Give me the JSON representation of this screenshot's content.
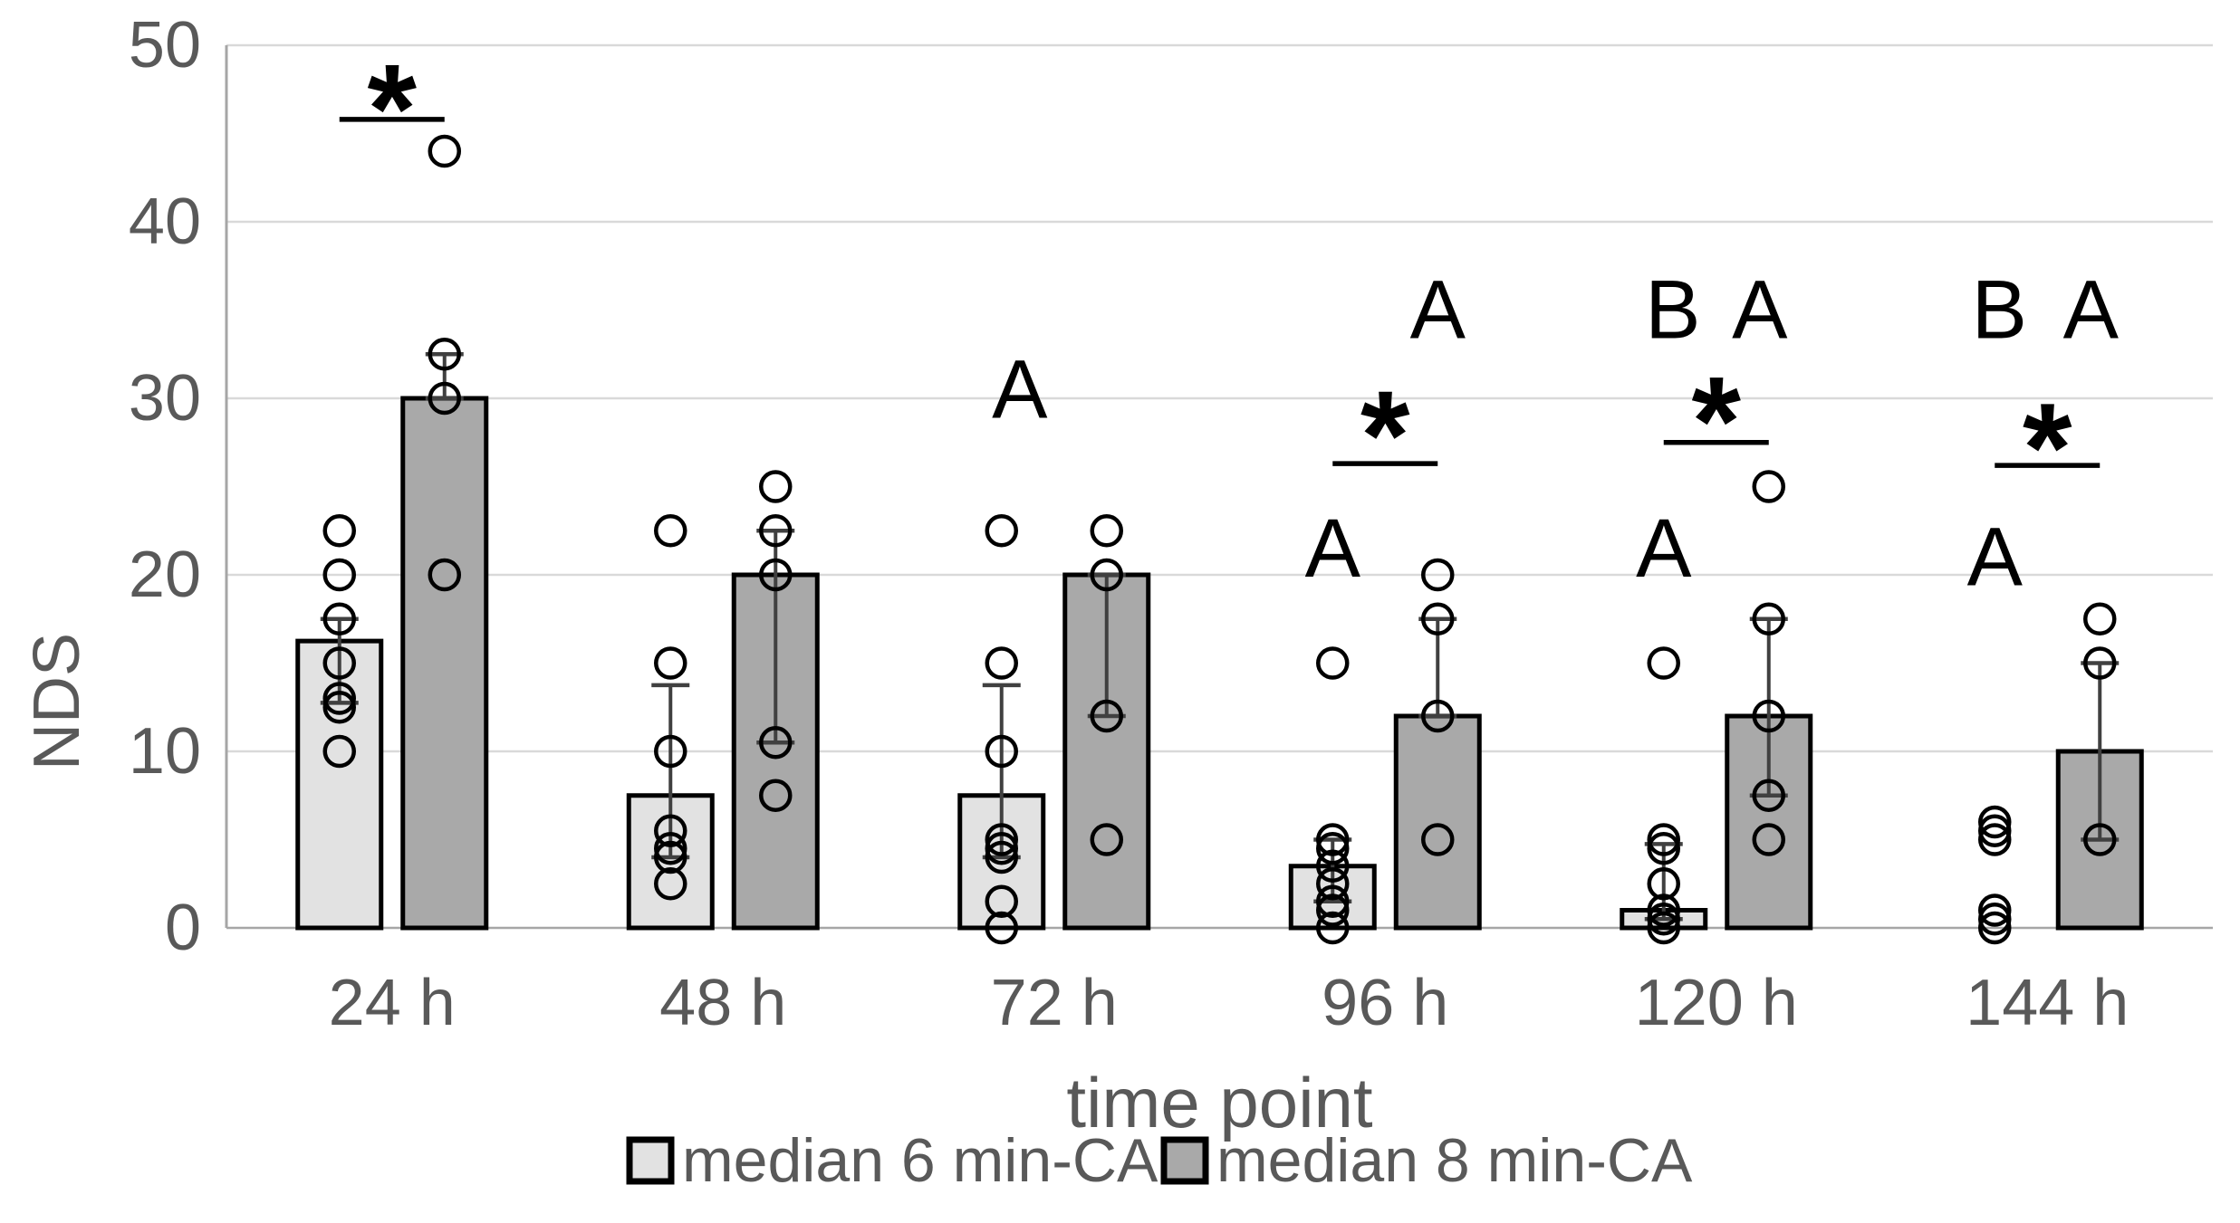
{
  "colors": {
    "bar_6min": "#e2e2e2",
    "bar_8min": "#a9a9a9",
    "bar_border": "#000000",
    "grid": "#d9d9d9",
    "axis": "#a6a6a6",
    "text": "#595959",
    "annotation": "#000000",
    "whisker": "#404040"
  },
  "chart_data": {
    "type": "bar",
    "title": "",
    "xlabel": "time point",
    "ylabel": "NDS",
    "ylim": [
      0,
      50
    ],
    "yticks": [
      0,
      10,
      20,
      30,
      40,
      50
    ],
    "grid": "horizontal",
    "legend_position": "bottom",
    "categories": [
      "24 h",
      "48 h",
      "72 h",
      "96 h",
      "120 h",
      "144 h"
    ],
    "series": [
      {
        "name": "median 6 min-CA",
        "color": "#e2e2e2",
        "values": [
          16.25,
          7.5,
          7.5,
          3.5,
          1,
          0
        ],
        "whiskers": [
          [
            12.75,
            17.5
          ],
          [
            4,
            13.75
          ],
          [
            4,
            13.75
          ],
          [
            1.5,
            5
          ],
          [
            0.5,
            4.75
          ],
          null
        ],
        "points": [
          [
            22.5,
            20,
            17.5,
            15,
            13,
            12.5,
            10
          ],
          [
            22.5,
            15,
            10,
            5.5,
            4.5,
            4,
            2.5
          ],
          [
            22.5,
            15,
            10,
            5,
            4.5,
            4,
            1.5,
            0
          ],
          [
            15,
            5,
            4.5,
            3.5,
            2.5,
            1.5,
            1,
            0
          ],
          [
            15,
            5,
            4.5,
            2.5,
            1,
            0.5,
            0
          ],
          [
            6,
            5.5,
            5,
            1,
            0.5,
            0
          ]
        ]
      },
      {
        "name": "median 8 min-CA",
        "color": "#a9a9a9",
        "values": [
          30,
          20,
          20,
          12,
          12,
          10
        ],
        "whiskers": [
          [
            30,
            32.5
          ],
          [
            10.5,
            22.5
          ],
          [
            12,
            20
          ],
          [
            12,
            17.5
          ],
          [
            7.5,
            17.5
          ],
          [
            5,
            15
          ]
        ],
        "points": [
          [
            44,
            32.5,
            30,
            20
          ],
          [
            25,
            22.5,
            20,
            10.5,
            7.5
          ],
          [
            22.5,
            20,
            12,
            5
          ],
          [
            20,
            17.5,
            12,
            5
          ],
          [
            25,
            17.5,
            12,
            7.5,
            5
          ],
          [
            17.5,
            15,
            5
          ]
        ]
      }
    ],
    "annotations": {
      "significance": [
        {
          "group": 0,
          "star": "*",
          "star_y": 48.0,
          "line_y": 45.8
        },
        {
          "group": 3,
          "star": "*",
          "star_y": 29.5,
          "line_y": 26.3
        },
        {
          "group": 4,
          "star": "*",
          "star_y": 30.3,
          "line_y": 27.5
        },
        {
          "group": 5,
          "star": "*",
          "star_y": 28.8,
          "line_y": 26.2
        }
      ],
      "letters": [
        {
          "group": 2,
          "series": 0,
          "label": "A",
          "y": 30.5,
          "dx": 20
        },
        {
          "group": 3,
          "series": 1,
          "label": "A",
          "y": 35,
          "dx": 0
        },
        {
          "group": 3,
          "series": 0,
          "label": "A",
          "y": 21.5,
          "dx": 0
        },
        {
          "group": 4,
          "series": 0,
          "label": "B",
          "y": 35,
          "dx": 10
        },
        {
          "group": 4,
          "series": 1,
          "label": "A",
          "y": 35,
          "dx": -10
        },
        {
          "group": 4,
          "series": 0,
          "label": "A",
          "y": 21.5,
          "dx": 0
        },
        {
          "group": 5,
          "series": 0,
          "label": "B",
          "y": 35,
          "dx": 5
        },
        {
          "group": 5,
          "series": 1,
          "label": "A",
          "y": 35,
          "dx": -10
        },
        {
          "group": 5,
          "series": 0,
          "label": "A",
          "y": 21,
          "dx": 0
        }
      ]
    },
    "legend": [
      {
        "label": "median 6 min-CA",
        "color": "#e2e2e2"
      },
      {
        "label": "median 8 min-CA",
        "color": "#a9a9a9"
      }
    ]
  }
}
